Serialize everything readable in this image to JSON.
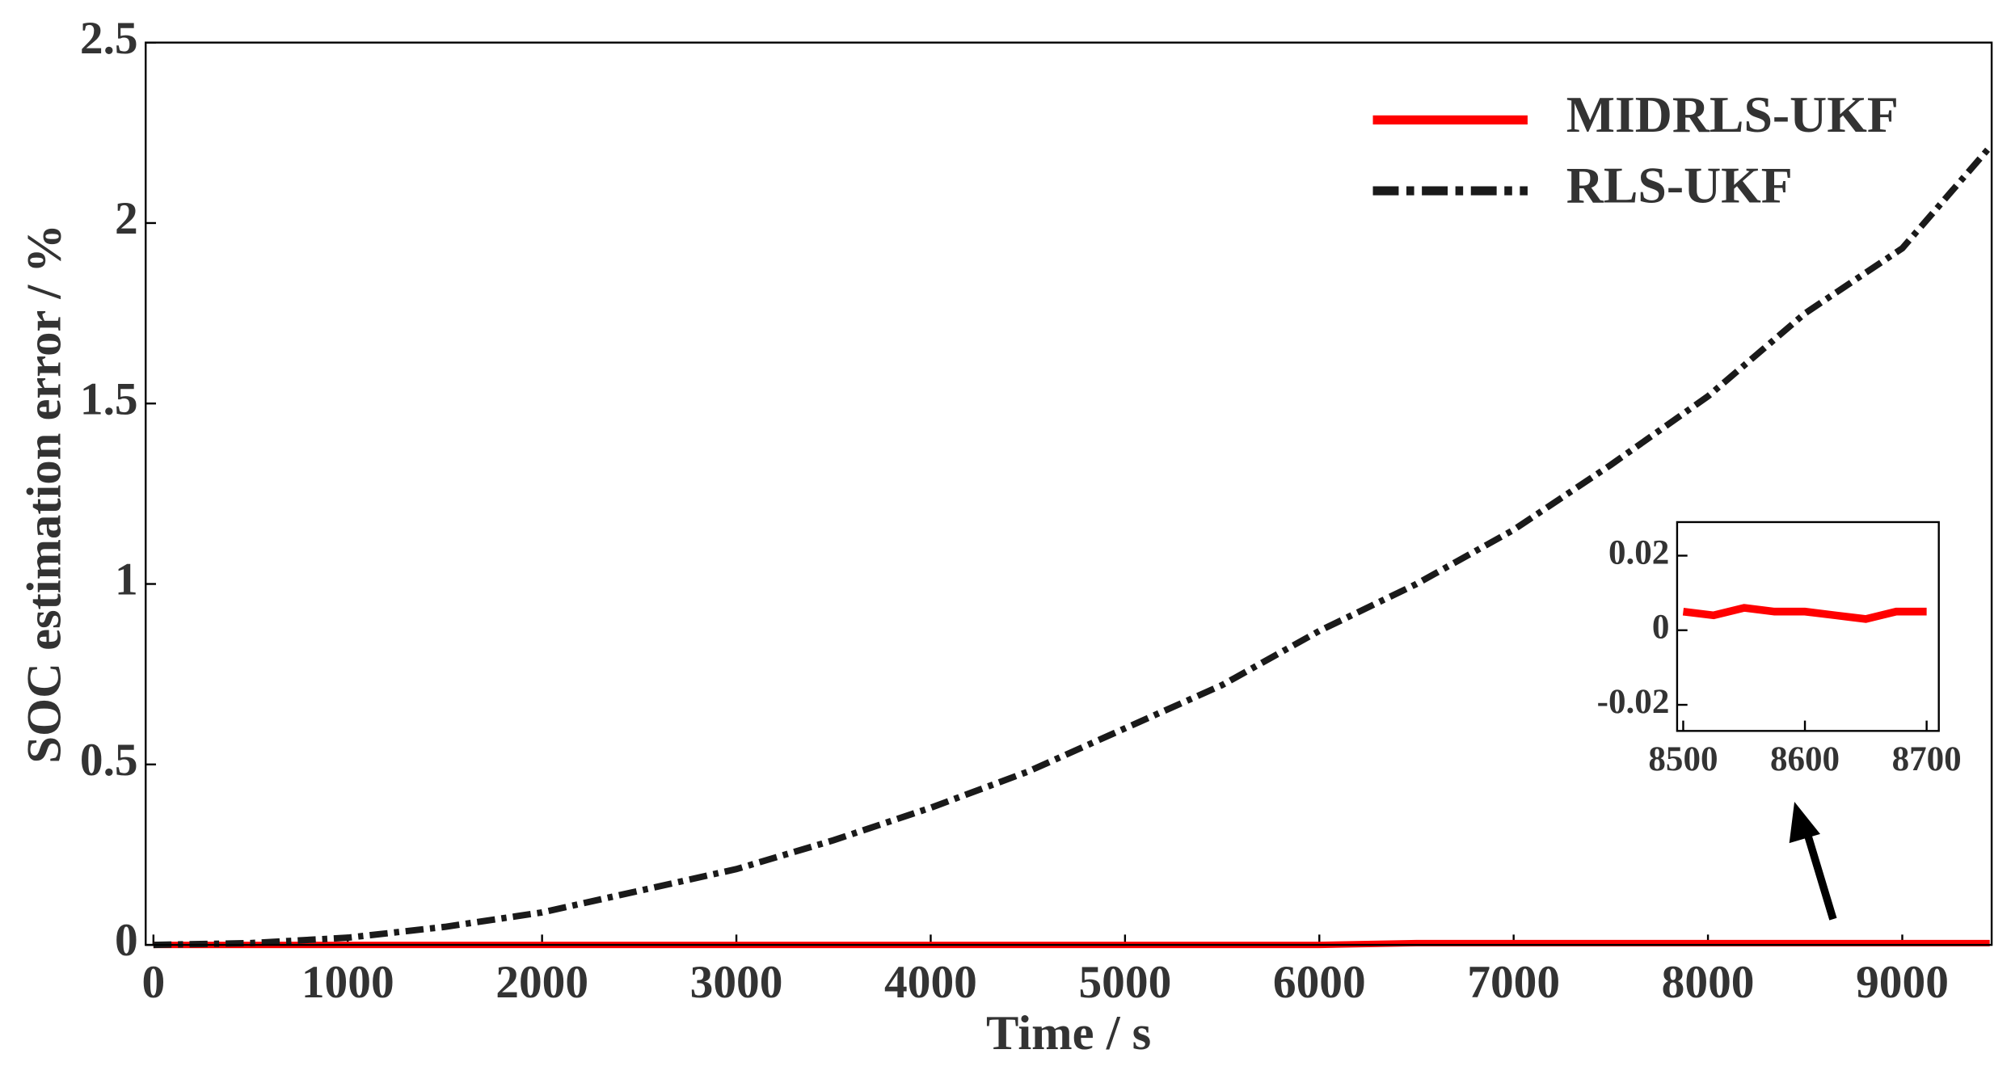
{
  "chart_data": [
    {
      "type": "line",
      "xlabel": "Time / s",
      "ylabel": "SOC estimation error / %",
      "xlim": [
        -40,
        9460
      ],
      "ylim": [
        0,
        2.5
      ],
      "xticks": [
        0,
        1000,
        2000,
        3000,
        4000,
        5000,
        6000,
        7000,
        8000,
        9000
      ],
      "yticks": [
        0,
        0.5,
        1,
        1.5,
        2,
        2.5
      ],
      "legend": "upper right",
      "x": [
        0,
        500,
        1000,
        1500,
        2000,
        2500,
        3000,
        3500,
        4000,
        4500,
        5000,
        5500,
        6000,
        6500,
        7000,
        7500,
        8000,
        8500,
        9000,
        9450
      ],
      "series": [
        {
          "name": "MIDRLS-UKF",
          "color": "#ff0000",
          "style": "solid",
          "values": [
            0,
            0,
            0,
            0,
            0,
            0,
            0,
            0,
            0,
            0,
            0,
            0,
            0,
            0.005,
            0.005,
            0.005,
            0.005,
            0.005,
            0.005,
            0.005
          ]
        },
        {
          "name": "RLS-UKF",
          "color": "#1a1a1a",
          "style": "dashed",
          "values": [
            0,
            0.005,
            0.02,
            0.05,
            0.09,
            0.15,
            0.21,
            0.29,
            0.38,
            0.48,
            0.6,
            0.72,
            0.87,
            1.0,
            1.15,
            1.33,
            1.52,
            1.75,
            1.93,
            2.21
          ]
        }
      ]
    },
    {
      "type": "line",
      "xlim": [
        8495,
        8710
      ],
      "ylim": [
        -0.027,
        0.029
      ],
      "xticks": [
        8500,
        8600,
        8700
      ],
      "yticks": [
        -0.02,
        0,
        0.02
      ],
      "x": [
        8500,
        8525,
        8550,
        8575,
        8600,
        8625,
        8650,
        8675,
        8700
      ],
      "series": [
        {
          "color": "#ff0000",
          "style": "solid",
          "values": [
            0.005,
            0.004,
            0.006,
            0.005,
            0.005,
            0.004,
            0.003,
            0.005,
            0.005
          ]
        }
      ]
    }
  ]
}
